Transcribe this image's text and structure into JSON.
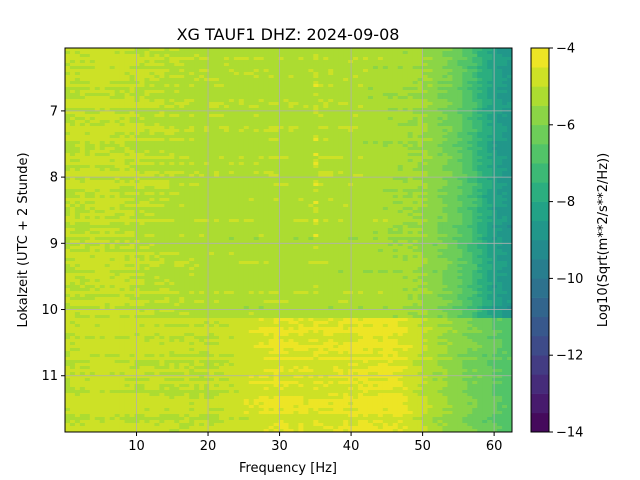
{
  "chart_data": {
    "type": "heatmap",
    "title": "XG TAUF1  DHZ: 2024-09-08",
    "xlabel": "Frequency [Hz]",
    "ylabel": "Lokalzeit (UTC + 2 Stunde)",
    "colorbar_label": "Log10(Sqrt(m**2/s**2/Hz))",
    "colormap": "viridis",
    "xlim": [
      0,
      62.5
    ],
    "ylim": [
      11.85,
      6.05
    ],
    "y_inverted": true,
    "clim": [
      -14,
      -4
    ],
    "grid": true,
    "x_ticks": [
      10,
      20,
      30,
      40,
      50,
      60
    ],
    "x_tick_labels": [
      "10",
      "20",
      "30",
      "40",
      "50",
      "60"
    ],
    "y_ticks": [
      7,
      8,
      9,
      10,
      11
    ],
    "y_tick_labels": [
      "7",
      "8",
      "9",
      "10",
      "11"
    ],
    "colorbar_ticks": [
      -4,
      -6,
      -8,
      -10,
      -12,
      -14
    ],
    "colorbar_tick_labels": [
      "−4",
      "−6",
      "−8",
      "−10",
      "−12",
      "−14"
    ],
    "colorbar_levels": 20,
    "frequency_profile_upper": {
      "frequency": [
        0,
        5,
        10,
        20,
        30,
        40,
        45,
        50,
        53,
        55,
        57,
        58,
        60,
        62.5
      ],
      "value": [
        -5.0,
        -4.9,
        -5.0,
        -5.2,
        -5.2,
        -5.2,
        -5.3,
        -5.5,
        -6.0,
        -6.4,
        -7.0,
        -7.5,
        -8.3,
        -8.8
      ]
    },
    "frequency_profile_lower": {
      "frequency": [
        0,
        5,
        10,
        20,
        30,
        35,
        40,
        45,
        48,
        50,
        52,
        55,
        58,
        60,
        62.5
      ],
      "value": [
        -5.0,
        -4.8,
        -4.9,
        -5.0,
        -4.5,
        -4.6,
        -4.5,
        -4.4,
        -4.6,
        -5.0,
        -5.4,
        -5.8,
        -6.2,
        -6.5,
        -6.8
      ]
    },
    "level_change_time": 10.15,
    "narrowband_lines_hz": [
      34.8,
      35.2
    ]
  }
}
